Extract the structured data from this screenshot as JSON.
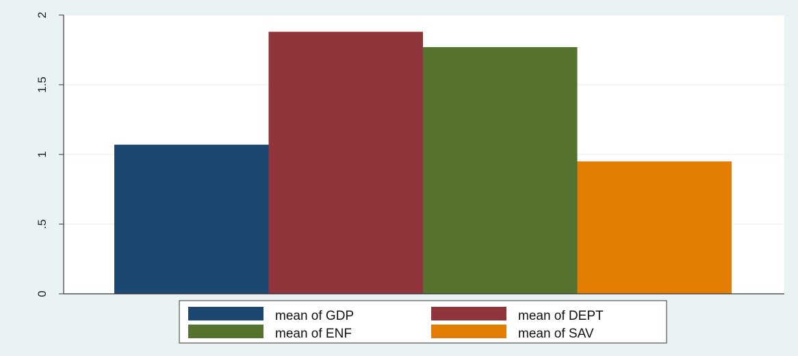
{
  "chart_data": {
    "type": "bar",
    "title": "",
    "xlabel": "",
    "ylabel": "",
    "ylim": [
      0,
      2
    ],
    "yticks": [
      0,
      0.5,
      1,
      1.5,
      2
    ],
    "ytick_labels": [
      "0",
      ".5",
      "1",
      "1.5",
      "2"
    ],
    "grid": true,
    "legend_position": "bottom",
    "series": [
      {
        "name": "mean of GDP",
        "value": 1.07,
        "color": "#1c4770"
      },
      {
        "name": "mean of DEPT",
        "value": 1.88,
        "color": "#90353c"
      },
      {
        "name": "mean of ENF",
        "value": 1.77,
        "color": "#56722f"
      },
      {
        "name": "mean of SAV",
        "value": 0.95,
        "color": "#e27e03"
      }
    ]
  }
}
